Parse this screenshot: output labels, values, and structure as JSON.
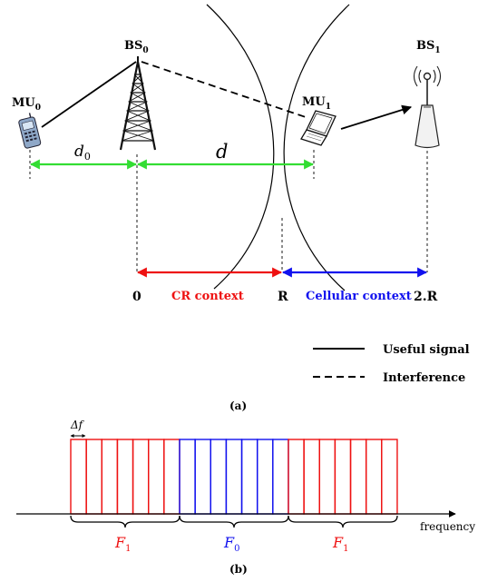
{
  "part_a": {
    "nodes": {
      "mu0": {
        "base": "MU",
        "sub": "0"
      },
      "bs0": {
        "base": "BS",
        "sub": "0"
      },
      "mu1": {
        "base": "MU",
        "sub": "1"
      },
      "bs1": {
        "base": "BS",
        "sub": "1"
      }
    },
    "distances": {
      "d0": {
        "base": "d",
        "sub": "0"
      },
      "d": "d"
    },
    "axis": {
      "left_label": "0",
      "mid_label": "R",
      "right_label": "2.R",
      "left_context": "CR context",
      "right_context": "Cellular context"
    },
    "legend": {
      "useful": "Useful signal",
      "interference": "Interference"
    },
    "caption": "(a)",
    "colors": {
      "distance_arrow": "#33dd33",
      "cr_context": "#ee1111",
      "cellular_context": "#1111ee"
    }
  },
  "part_b": {
    "delta_f": "Δf",
    "groups": [
      {
        "label": "F",
        "sub": "1",
        "color": "#ee1111",
        "slots": 7
      },
      {
        "label": "F",
        "sub": "0",
        "color": "#1111ee",
        "slots": 7
      },
      {
        "label": "F",
        "sub": "1",
        "color": "#ee1111",
        "slots": 7
      }
    ],
    "axis_label": "frequency",
    "caption": "(b)"
  },
  "icons": {
    "mu0": "mobile-phone-icon",
    "bs0": "lattice-tower-icon",
    "mu1": "laptop-icon",
    "bs1": "antenna-tower-icon"
  }
}
